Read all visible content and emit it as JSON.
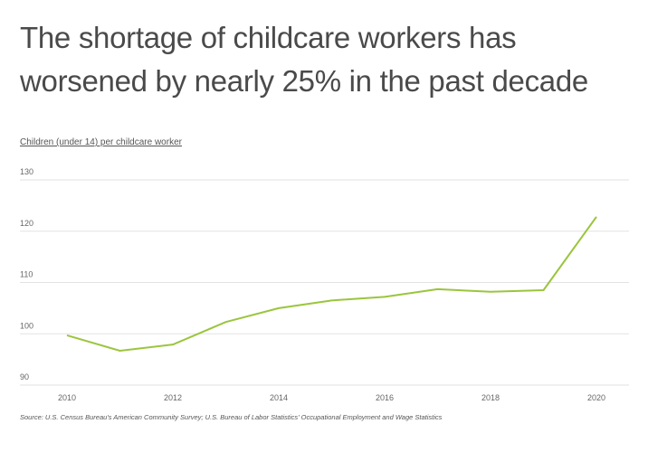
{
  "chart_data": {
    "type": "line",
    "title": "The shortage of childcare workers has worsened by nearly 25% in the past decade",
    "ylabel": "Children (under 14) per childcare worker",
    "xlabel": "",
    "x": [
      2010,
      2011,
      2012,
      2013,
      2014,
      2015,
      2016,
      2017,
      2018,
      2019,
      2020
    ],
    "series": [
      {
        "name": "Children per childcare worker",
        "values": [
          99.7,
          96.7,
          97.9,
          102.3,
          105.0,
          106.5,
          107.2,
          108.7,
          108.2,
          108.5,
          122.8
        ]
      }
    ],
    "ylim": [
      90,
      130
    ],
    "xlim": [
      2010,
      2020
    ],
    "yticks": [
      "90",
      "100",
      "110",
      "120",
      "130"
    ],
    "xticks": [
      "2010",
      "2012",
      "2014",
      "2016",
      "2018",
      "2020"
    ],
    "grid": true,
    "line_color": "#9bc53d",
    "source": "Source:  U.S. Census Bureau's American Community Survey; U.S. Bureau of Labor Statistics' Occupational Employment and Wage Statistics"
  }
}
